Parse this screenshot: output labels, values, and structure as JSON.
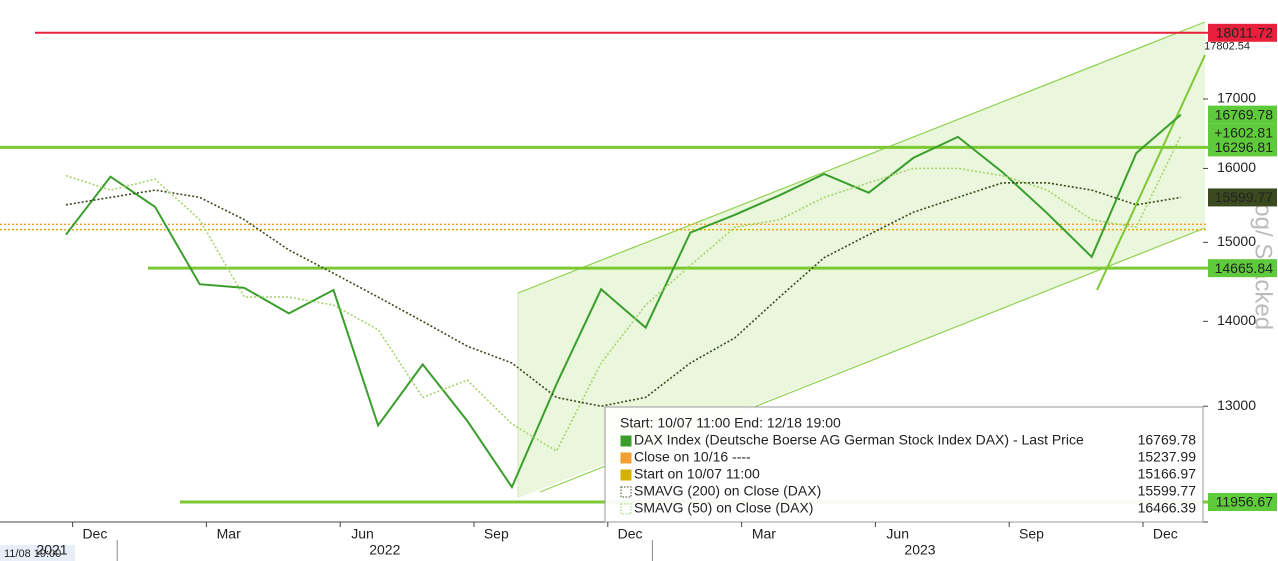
{
  "chart_data": {
    "type": "line",
    "log_scale": true,
    "x": [
      "2021-11",
      "2021-12",
      "2022-01",
      "2022-02",
      "2022-03",
      "2022-04",
      "2022-05",
      "2022-06",
      "2022-07",
      "2022-08",
      "2022-09",
      "2022-10",
      "2022-11",
      "2022-12",
      "2023-01",
      "2023-02",
      "2023-03",
      "2023-04",
      "2023-05",
      "2023-06",
      "2023-07",
      "2023-08",
      "2023-09",
      "2023-10",
      "2023-11",
      "2023-12"
    ],
    "xticks": [
      {
        "value": "2021-12",
        "label": "Dec"
      },
      {
        "value": "2022-03",
        "label": "Mar"
      },
      {
        "value": "2022-06",
        "label": "Jun"
      },
      {
        "value": "2022-09",
        "label": "Sep"
      },
      {
        "value": "2022-12",
        "label": "Dec"
      },
      {
        "value": "2023-03",
        "label": "Mar"
      },
      {
        "value": "2023-06",
        "label": "Jun"
      },
      {
        "value": "2023-09",
        "label": "Sep"
      },
      {
        "value": "2023-12",
        "label": "Dec"
      }
    ],
    "year_labels": [
      "2021",
      "2022",
      "2023"
    ],
    "start_label": "11/08 19:00",
    "series": [
      {
        "name": "DAX Index (Deutsche Boerse AG German Stock Index DAX) - Last Price",
        "color": "#3a9e2c",
        "values": [
          15100,
          15885,
          15471,
          14461,
          14415,
          14098,
          14388,
          12784,
          13484,
          12835,
          12114,
          13253,
          14397,
          13924,
          15128,
          15365,
          15629,
          15922,
          15664,
          16148,
          16447,
          15947,
          15387,
          14810,
          16215,
          16769.78
        ]
      },
      {
        "name": "SMAVG (200)  on Close (DAX)",
        "color": "#3b4a1e",
        "values": [
          15500,
          15600,
          15700,
          15600,
          15300,
          14900,
          14600,
          14300,
          14000,
          13700,
          13500,
          13100,
          13000,
          13100,
          13500,
          13800,
          14300,
          14800,
          15100,
          15400,
          15600,
          15800,
          15800,
          15700,
          15500,
          15599.77
        ]
      },
      {
        "name": "SMAVG (50)  on Close (DAX)",
        "color": "#a6d46a",
        "values": [
          15900,
          15700,
          15850,
          15300,
          14300,
          14300,
          14200,
          13900,
          13100,
          13300,
          12800,
          12500,
          13500,
          14200,
          14700,
          15200,
          15300,
          15600,
          15800,
          16000,
          16000,
          15900,
          15700,
          15300,
          15200,
          16466.39
        ]
      }
    ],
    "levels": [
      {
        "value": 18011.72,
        "color": "#e8203c"
      },
      {
        "value": 16296.81,
        "color": "#7cc832"
      },
      {
        "value": 14665.84,
        "color": "#7cc832"
      },
      {
        "value": 11956.67,
        "color": "#7cc832"
      },
      {
        "name": "Close on 10/16 ----",
        "value": 15237.99,
        "color": "#f0a030"
      },
      {
        "name": "Start on 10/07 11:00",
        "value": 15166.97,
        "color": "#d4b000"
      }
    ],
    "annotations": {
      "upper_channel": 17802.54,
      "change": {
        "value": 1602.81,
        "label": "+1602.81"
      }
    },
    "legend_title": "Start: 10/07 11:00 End: 12/18 19:00",
    "scale_label": "Log/ Stacked",
    "ylim": [
      11750,
      18535
    ],
    "yticks": [
      13000,
      14000,
      15000,
      16000,
      17000
    ]
  }
}
